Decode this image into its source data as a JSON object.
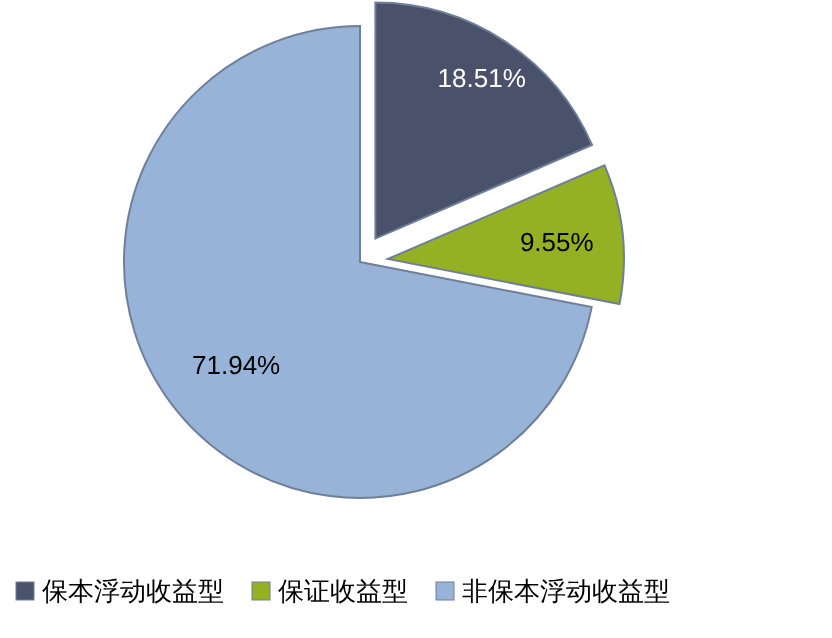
{
  "chart_data": {
    "type": "pie",
    "categories": [
      "保本浮动收益型",
      "保证收益型",
      "非保本浮动收益型"
    ],
    "values": [
      18.51,
      9.55,
      71.94
    ],
    "colors": [
      "#4a526b",
      "#93b123",
      "#97b3d8"
    ],
    "value_labels": [
      "18.51%",
      "9.55%",
      "71.94%"
    ],
    "legend": "bottom"
  }
}
